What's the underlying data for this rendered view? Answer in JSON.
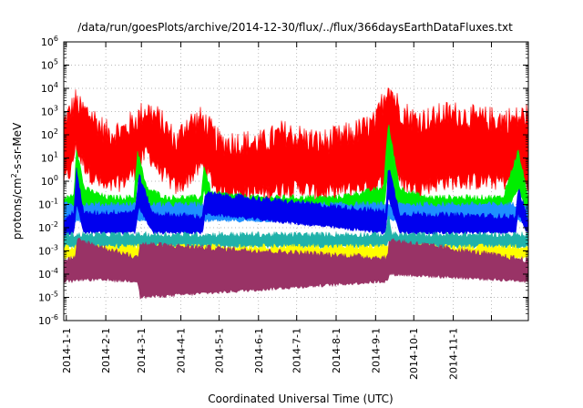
{
  "chart_data": {
    "type": "area",
    "title": "/data/run/goesPlots/archive/2014-12-30/flux/../flux/366daysEarthDataFluxes.txt",
    "xlabel": "Coordinated Universal Time (UTC)",
    "ylabel_prefix": "protons/cm",
    "ylabel_sup": "2",
    "ylabel_suffix": "-s-sr-MeV",
    "yscale": "log",
    "ylim": [
      1e-06,
      1000000.0
    ],
    "xlim": [
      "2013-12-30",
      "2014-12-30"
    ],
    "grid": true,
    "legend": "none",
    "x_ticks": [
      {
        "date": "2014-01-01",
        "label": "2014-1-1"
      },
      {
        "date": "2014-02-01",
        "label": "2014-2-1"
      },
      {
        "date": "2014-03-01",
        "label": "2014-3-1"
      },
      {
        "date": "2014-04-01",
        "label": "2014-4-1"
      },
      {
        "date": "2014-05-01",
        "label": "2014-5-1"
      },
      {
        "date": "2014-06-01",
        "label": "2014-6-1"
      },
      {
        "date": "2014-07-01",
        "label": "2014-7-1"
      },
      {
        "date": "2014-08-01",
        "label": "2014-8-1"
      },
      {
        "date": "2014-09-01",
        "label": "2014-9-1"
      },
      {
        "date": "2014-10-01",
        "label": "2014-10-1"
      },
      {
        "date": "2014-11-01",
        "label": "2014-11-1"
      },
      {
        "date": "2014-12-01",
        "label": ""
      }
    ],
    "y_ticks": [
      {
        "exp": -6,
        "base": "10",
        "sup": "-6"
      },
      {
        "exp": -5,
        "base": "10",
        "sup": "-5"
      },
      {
        "exp": -4,
        "base": "10",
        "sup": "-4"
      },
      {
        "exp": -3,
        "base": "10",
        "sup": "-3"
      },
      {
        "exp": -2,
        "base": "10",
        "sup": "-2"
      },
      {
        "exp": -1,
        "base": "10",
        "sup": "-1"
      },
      {
        "exp": 0,
        "base": "10",
        "sup": "0"
      },
      {
        "exp": 1,
        "base": "10",
        "sup": "1"
      },
      {
        "exp": 2,
        "base": "10",
        "sup": "2"
      },
      {
        "exp": 3,
        "base": "10",
        "sup": "3"
      },
      {
        "exp": 4,
        "base": "10",
        "sup": "4"
      },
      {
        "exp": 5,
        "base": "10",
        "sup": "5"
      },
      {
        "exp": 6,
        "base": "10",
        "sup": "6"
      }
    ],
    "series": [
      {
        "color": "#ff0000",
        "band": true,
        "x": [
          "2013-12-30",
          "2014-01-05",
          "2014-01-08",
          "2014-01-12",
          "2014-01-20",
          "2014-02-01",
          "2014-02-15",
          "2014-02-25",
          "2014-03-05",
          "2014-03-15",
          "2014-03-29",
          "2014-04-05",
          "2014-04-18",
          "2014-05-01",
          "2014-05-20",
          "2014-06-05",
          "2014-06-20",
          "2014-07-05",
          "2014-07-20",
          "2014-08-05",
          "2014-08-20",
          "2014-09-01",
          "2014-09-11",
          "2014-09-20",
          "2014-10-01",
          "2014-10-15",
          "2014-10-25",
          "2014-11-05",
          "2014-11-20",
          "2014-12-05",
          "2014-12-20",
          "2014-12-30"
        ],
        "low": [
          1,
          3,
          30,
          10,
          2,
          0.5,
          1,
          3,
          20,
          3,
          0.5,
          1,
          5,
          0.3,
          0.3,
          0.3,
          0.5,
          0.5,
          0.3,
          0.4,
          0.5,
          0.5,
          2,
          1,
          0.5,
          0.7,
          1,
          1,
          1,
          1,
          1,
          1
        ],
        "high": [
          200,
          800,
          2000,
          800,
          500,
          80,
          100,
          300,
          800,
          300,
          30,
          200,
          300,
          30,
          30,
          30,
          80,
          50,
          30,
          50,
          100,
          200,
          10000,
          800,
          300,
          300,
          500,
          500,
          300,
          300,
          300,
          500
        ]
      },
      {
        "color": "#00ee00",
        "band": true,
        "x": [
          "2013-12-30",
          "2014-01-07",
          "2014-01-09",
          "2014-01-15",
          "2014-02-01",
          "2014-02-23",
          "2014-02-26",
          "2014-03-05",
          "2014-03-20",
          "2014-04-17",
          "2014-04-19",
          "2014-04-25",
          "2014-06-01",
          "2014-08-01",
          "2014-09-07",
          "2014-09-11",
          "2014-09-20",
          "2014-10-10",
          "2014-11-01",
          "2014-12-10",
          "2014-12-22",
          "2014-12-30"
        ],
        "low": [
          0.03,
          0.05,
          0.5,
          0.05,
          0.03,
          0.03,
          1,
          0.04,
          0.03,
          0.03,
          0.5,
          0.04,
          0.03,
          0.03,
          0.04,
          3,
          0.05,
          0.03,
          0.03,
          0.03,
          0.5,
          0.03
        ],
        "high": [
          0.15,
          0.3,
          30,
          0.5,
          0.2,
          0.2,
          20,
          0.5,
          0.2,
          0.2,
          5,
          0.3,
          0.2,
          0.2,
          0.5,
          300,
          0.5,
          0.2,
          0.2,
          0.2,
          20,
          0.2
        ]
      },
      {
        "color": "#1e90ff",
        "band": true,
        "x": [
          "2013-12-30",
          "2014-06-01",
          "2014-12-30"
        ],
        "low": [
          0.02,
          0.02,
          0.02
        ],
        "high": [
          0.1,
          0.1,
          0.1
        ]
      },
      {
        "color": "#0000ee",
        "band": true,
        "x": [
          "2013-12-30",
          "2014-01-07",
          "2014-01-09",
          "2014-01-15",
          "2014-02-24",
          "2014-02-27",
          "2014-03-10",
          "2014-04-18",
          "2014-04-20",
          "2014-09-09",
          "2014-09-11",
          "2014-09-20",
          "2014-12-20",
          "2014-12-22",
          "2014-12-30"
        ],
        "low": [
          0.005,
          0.006,
          0.1,
          0.006,
          0.006,
          0.08,
          0.006,
          0.006,
          0.04,
          0.006,
          0.2,
          0.006,
          0.006,
          0.04,
          0.005
        ],
        "high": [
          0.02,
          0.05,
          3,
          0.04,
          0.05,
          2,
          0.04,
          0.03,
          0.3,
          0.05,
          5,
          0.04,
          0.03,
          0.5,
          0.02
        ]
      },
      {
        "color": "#20b2aa",
        "band": true,
        "x": [
          "2013-12-30",
          "2014-09-09",
          "2014-09-11",
          "2014-09-14",
          "2014-12-30"
        ],
        "low": [
          0.0015,
          0.0015,
          0.003,
          0.0015,
          0.0015
        ],
        "high": [
          0.005,
          0.005,
          0.04,
          0.005,
          0.005
        ]
      },
      {
        "color": "#ffff00",
        "band": true,
        "x": [
          "2013-12-30",
          "2014-12-30"
        ],
        "low": [
          0.0005,
          0.0005
        ],
        "high": [
          0.0015,
          0.0015
        ]
      },
      {
        "color": "#993366",
        "band": true,
        "x": [
          "2013-12-30",
          "2014-01-08",
          "2014-01-10",
          "2014-02-26",
          "2014-02-28",
          "2014-09-10",
          "2014-09-12",
          "2014-12-30"
        ],
        "low": [
          5e-05,
          5e-05,
          6e-05,
          5e-05,
          1e-05,
          5e-05,
          0.0001,
          5e-05
        ],
        "high": [
          0.0004,
          0.0005,
          0.003,
          0.0005,
          0.002,
          0.0005,
          0.003,
          0.0004
        ]
      }
    ]
  }
}
